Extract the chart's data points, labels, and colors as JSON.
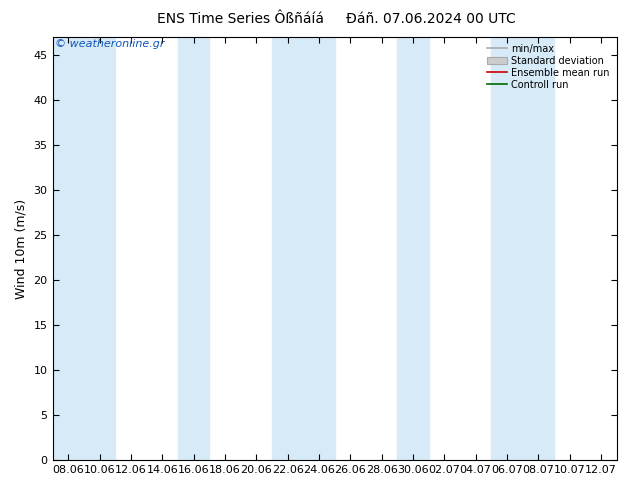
{
  "title": "ENS Time Series Ôßñáíá",
  "subtitle": "Đáñ. 07.06.2024 00 UTC",
  "ylabel": "Wind 10m (m/s)",
  "watermark": "© weatheronline.gr",
  "ylim": [
    0,
    47
  ],
  "yticks": [
    0,
    5,
    10,
    15,
    20,
    25,
    30,
    35,
    40,
    45
  ],
  "xtick_labels": [
    "08.06",
    "10.06",
    "12.06",
    "14.06",
    "16.06",
    "18.06",
    "20.06",
    "22.06",
    "24.06",
    "26.06",
    "28.06",
    "30.06",
    "02.07",
    "04.07",
    "06.07",
    "08.07",
    "10.07",
    "12.07"
  ],
  "n_xticks": 18,
  "bg_color": "#FFFFFF",
  "plot_bg_color": "#FFFFFF",
  "stripe_color": "#D6EAF8",
  "stripe_alpha": 1.0,
  "stripe_indices": [
    0,
    1,
    4,
    7,
    8,
    11,
    14,
    15
  ],
  "legend_entries": [
    "min/max",
    "Standard deviation",
    "Ensemble mean run",
    "Controll run"
  ],
  "title_fontsize": 10,
  "label_fontsize": 9,
  "tick_fontsize": 8,
  "watermark_color": "#1155BB",
  "watermark_fontsize": 8
}
